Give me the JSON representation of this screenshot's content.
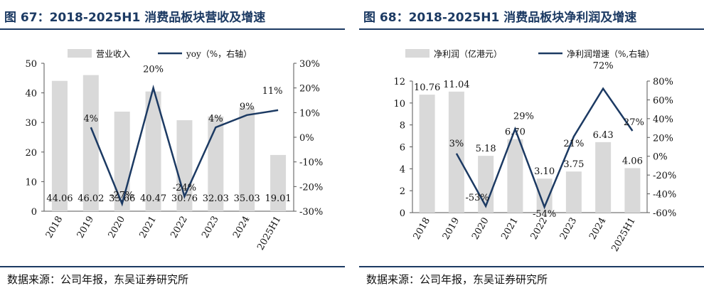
{
  "chart_data": [
    {
      "type": "bar+line",
      "title": "图 67：2018-2025H1 消费品板块营收及增速",
      "categories": [
        "2018",
        "2019",
        "2020",
        "2021",
        "2022",
        "2023",
        "2024",
        "2025H1"
      ],
      "series": [
        {
          "name": "营业收入",
          "kind": "bar",
          "axis": "left",
          "values": [
            44.06,
            46.02,
            33.66,
            40.47,
            30.76,
            32.03,
            35.03,
            19.01
          ],
          "labels": [
            "44.06",
            "46.02",
            "33.66",
            "40.47",
            "30.76",
            "32.03",
            "35.03",
            "19.01"
          ]
        },
        {
          "name": "yoy（%，右轴）",
          "kind": "line",
          "axis": "right",
          "values": [
            null,
            4,
            -27,
            20,
            -24,
            4,
            9,
            11
          ],
          "labels": [
            "",
            "4%",
            "-27%",
            "20%",
            "-24%",
            "4%",
            "9%",
            "11%"
          ]
        }
      ],
      "y_left": {
        "min": 0,
        "max": 50,
        "ticks": [
          "0",
          "10",
          "20",
          "30",
          "40",
          "50"
        ]
      },
      "y_right": {
        "min": -30,
        "max": 30,
        "ticks": [
          "-30%",
          "-20%",
          "-10%",
          "0%",
          "10%",
          "20%",
          "30%"
        ]
      },
      "colors": {
        "bar": "#d9d9d9",
        "line": "#1c3a63"
      },
      "source": "数据来源：公司年报，东吴证券研究所"
    },
    {
      "type": "bar+line",
      "title": "图 68：2018-2025H1 消费品板块净利润及增速",
      "categories": [
        "2018",
        "2019",
        "2020",
        "2021",
        "2022",
        "2023",
        "2024",
        "2025H1"
      ],
      "series": [
        {
          "name": "净利润（亿港元）",
          "kind": "bar",
          "axis": "left",
          "values": [
            10.76,
            11.04,
            5.18,
            6.7,
            3.1,
            3.75,
            6.43,
            4.06
          ],
          "labels": [
            "10.76",
            "11.04",
            "5.18",
            "6.70",
            "3.10",
            "3.75",
            "6.43",
            "4.06"
          ]
        },
        {
          "name": "净利润增速（%,右轴）",
          "kind": "line",
          "axis": "right",
          "values": [
            null,
            3,
            -53,
            29,
            -54,
            21,
            72,
            27
          ],
          "labels": [
            "",
            "3%",
            "-53%",
            "29%",
            "-54%",
            "21%",
            "72%",
            "27%"
          ]
        }
      ],
      "y_left": {
        "min": 0,
        "max": 12,
        "ticks": [
          "0",
          "2",
          "4",
          "6",
          "8",
          "10",
          "12"
        ]
      },
      "y_right": {
        "min": -60,
        "max": 80,
        "ticks": [
          "-60%",
          "-40%",
          "-20%",
          "0%",
          "20%",
          "40%",
          "60%",
          "80%"
        ]
      },
      "colors": {
        "bar": "#d9d9d9",
        "line": "#1c3a63"
      },
      "source": "数据来源：公司年报，东吴证券研究所"
    }
  ]
}
